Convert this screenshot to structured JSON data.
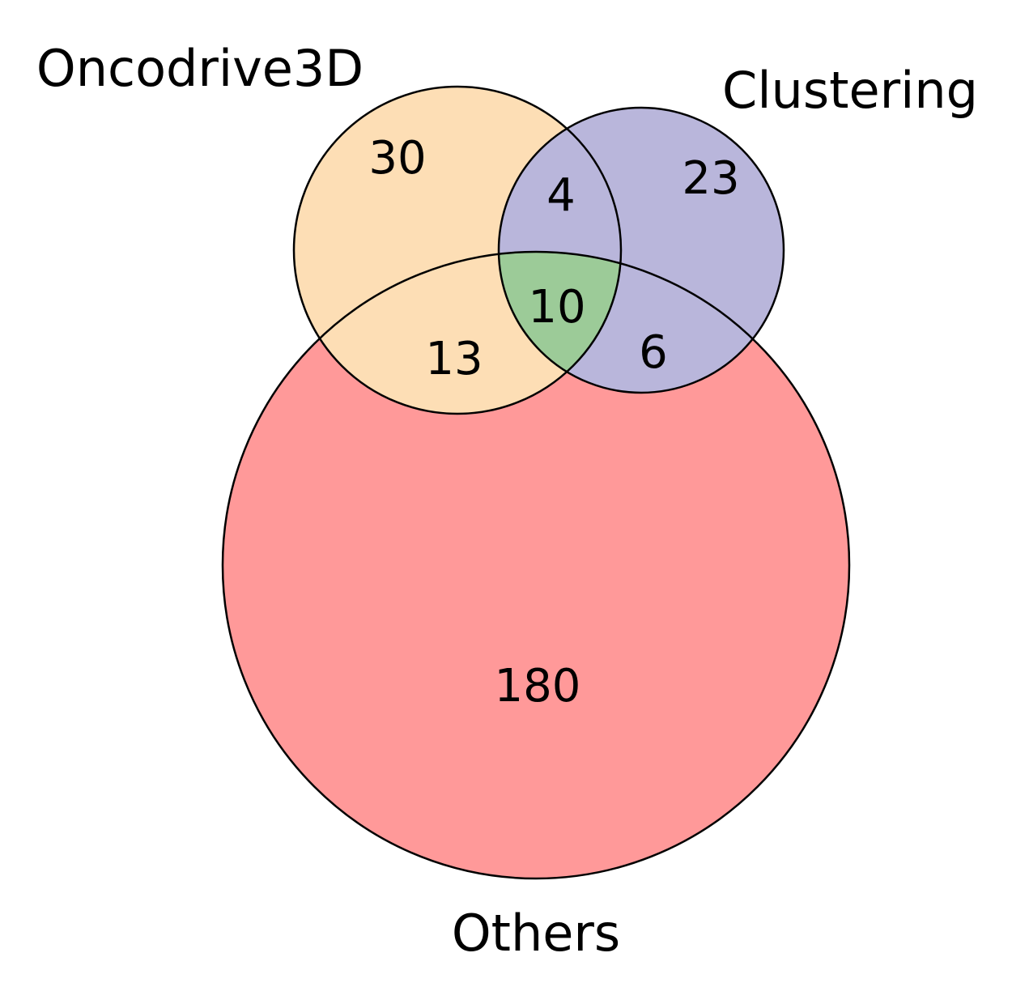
{
  "sets": {
    "oncodrive3d": {
      "label": "Oncodrive3D",
      "color": "#fddeb5"
    },
    "clustering": {
      "label": "Clustering",
      "color": "#b9b6db"
    },
    "others": {
      "label": "Others",
      "color": "#ff9999"
    }
  },
  "regions": {
    "oncodrive3d_only": "30",
    "clustering_only": "23",
    "oncodrive3d_clustering": "4",
    "all_three": "10",
    "oncodrive3d_others": "13",
    "clustering_others": "6",
    "others_only": "180"
  },
  "colors": {
    "all_three": "#9ccb98",
    "outline": "#000000"
  }
}
